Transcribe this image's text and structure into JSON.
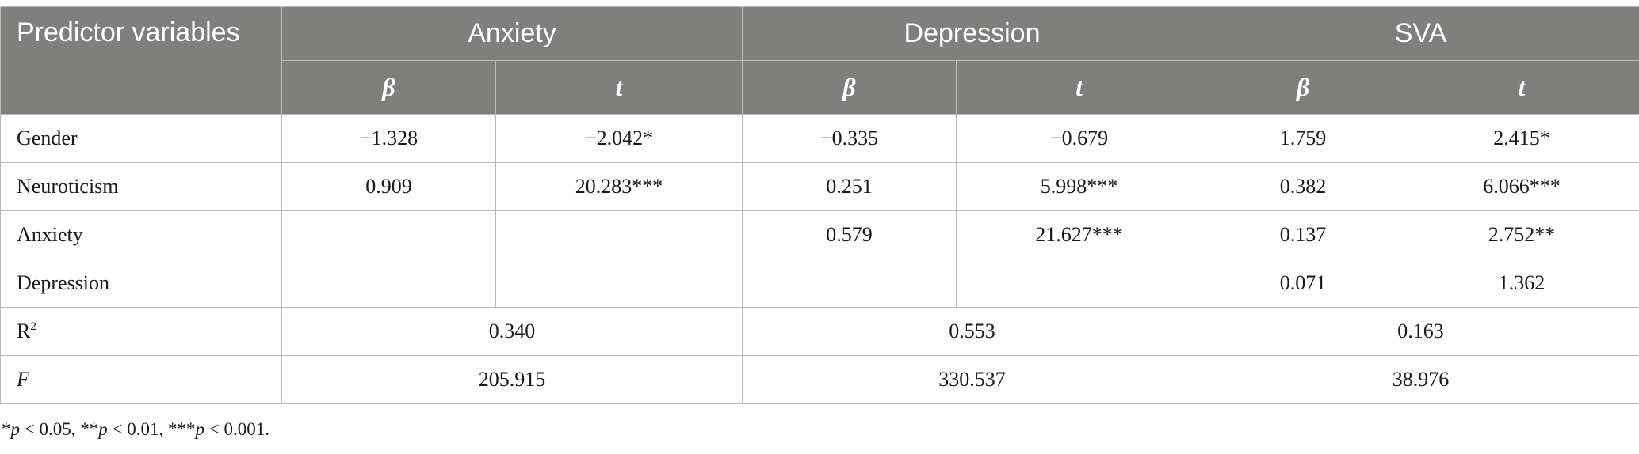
{
  "header": {
    "predictor": "Predictor variables",
    "groups": [
      "Anxiety",
      "Depression",
      "SVA"
    ],
    "sub": [
      "β",
      "t",
      "β",
      "t",
      "β",
      "t"
    ]
  },
  "rows": [
    {
      "label": "Gender",
      "values": [
        "−1.328",
        "−2.042*",
        "−0.335",
        "−0.679",
        "1.759",
        "2.415*"
      ]
    },
    {
      "label": "Neuroticism",
      "values": [
        "0.909",
        "20.283***",
        "0.251",
        "5.998***",
        "0.382",
        "6.066***"
      ]
    },
    {
      "label": "Anxiety",
      "values": [
        "",
        "",
        "0.579",
        "21.627***",
        "0.137",
        "2.752**"
      ]
    },
    {
      "label": "Depression",
      "values": [
        "",
        "",
        "",
        "",
        "0.071",
        "1.362"
      ]
    }
  ],
  "r2": {
    "label": "R",
    "sup": "2",
    "values": [
      "0.340",
      "0.553",
      "0.163"
    ]
  },
  "f": {
    "label": "F",
    "values": [
      "205.915",
      "330.537",
      "38.976"
    ]
  },
  "note": {
    "parts": [
      "*",
      "p",
      " < 0.05, **",
      "p",
      " < 0.01, ***",
      "p",
      " < 0.001."
    ]
  }
}
